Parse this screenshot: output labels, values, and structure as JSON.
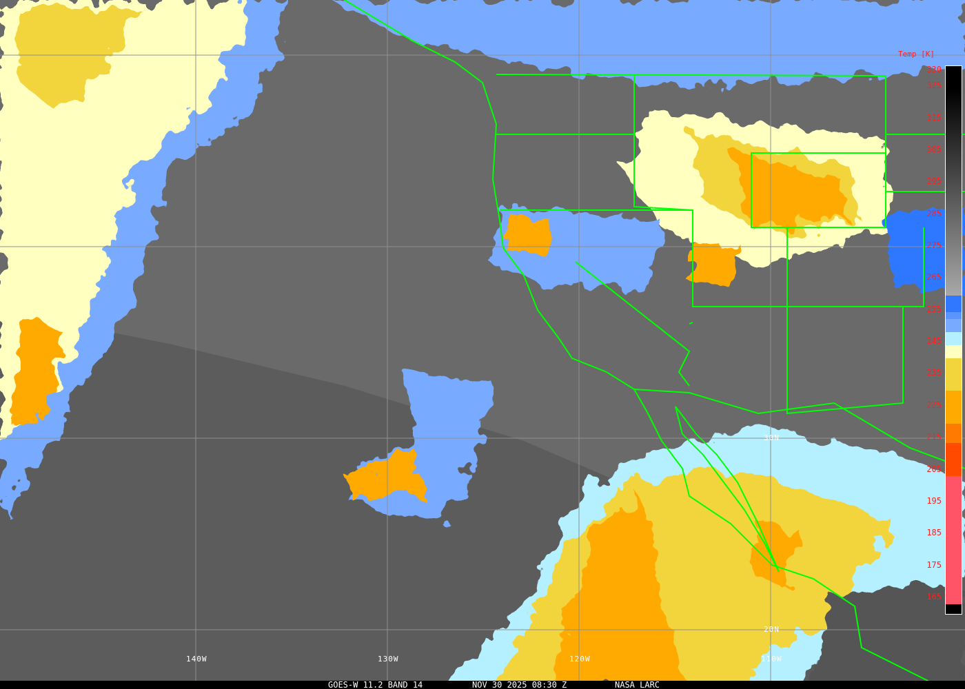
{
  "caption": {
    "satellite": "GOES-W 11.2 BAND 14",
    "datetime": "NOV 30 2025 08:30 Z",
    "source": "NASA LARC"
  },
  "grid_labels": {
    "lon": [
      "140W",
      "130W",
      "120W",
      "110W"
    ],
    "lat": [
      "30N",
      "20N"
    ]
  },
  "legend": {
    "title": "Temp [K]",
    "ticks": [
      "330",
      "325",
      "315",
      "305",
      "295",
      "285",
      "275",
      "265",
      "255",
      "245",
      "235",
      "225",
      "215",
      "205",
      "195",
      "185",
      "175",
      "165"
    ],
    "segments": [
      {
        "from": 330,
        "to": 260,
        "color": "gradient-black-to-gray"
      },
      {
        "from": 260,
        "to": 255,
        "color": "#2f78ff"
      },
      {
        "from": 255,
        "to": 253,
        "color": "#5a95ff"
      },
      {
        "from": 253,
        "to": 249,
        "color": "#78aaff"
      },
      {
        "from": 249,
        "to": 245,
        "color": "#b4f0ff"
      },
      {
        "from": 245,
        "to": 241,
        "color": "#ffffc0"
      },
      {
        "from": 241,
        "to": 231,
        "color": "#f2d43c"
      },
      {
        "from": 231,
        "to": 221,
        "color": "#ffaa00"
      },
      {
        "from": 221,
        "to": 215,
        "color": "#ff7a00"
      },
      {
        "from": 215,
        "to": 205,
        "color": "#ff4a00"
      },
      {
        "from": 205,
        "to": 166,
        "color": "#ff5468"
      },
      {
        "from": 166,
        "to": 163,
        "color": "#000000"
      }
    ]
  },
  "colors": {
    "boundaries": "#00ff00",
    "grid": "#909090",
    "labels": "#ff2020"
  }
}
